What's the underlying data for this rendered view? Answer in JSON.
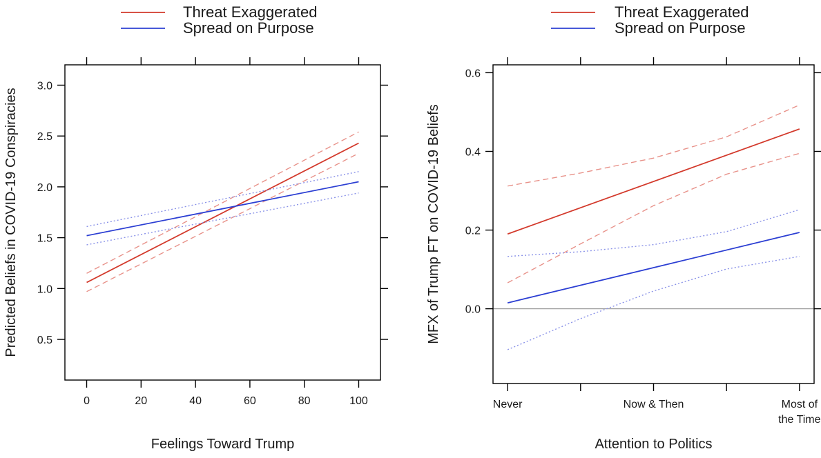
{
  "chart_data": [
    {
      "type": "line",
      "xlabel": "Feelings Toward Trump",
      "ylabel": "Predicted Beliefs in COVID-19 Conspiracies",
      "xlim": [
        -8,
        108
      ],
      "ylim": [
        0.1,
        3.2
      ],
      "xticks": [
        0,
        20,
        40,
        60,
        80,
        100
      ],
      "xtick_labels": [
        "0",
        "20",
        "40",
        "60",
        "80",
        "100"
      ],
      "yticks": [
        0.5,
        1.0,
        1.5,
        2.0,
        2.5,
        3.0
      ],
      "ytick_labels": [
        "0.5",
        "1.0",
        "1.5",
        "2.0",
        "2.5",
        "3.0"
      ],
      "legend": {
        "position": "top",
        "entries": [
          "Threat Exaggerated",
          "Spread on Purpose"
        ]
      },
      "series": [
        {
          "name": "Threat Exaggerated",
          "color": "#d33a2c",
          "style": "solid",
          "x": [
            0,
            100
          ],
          "y": [
            1.06,
            2.43
          ]
        },
        {
          "name": "Threat Exaggerated lower bound",
          "color": "#e8928a",
          "style": "dashed",
          "x": [
            0,
            100
          ],
          "y": [
            0.97,
            2.33
          ]
        },
        {
          "name": "Threat Exaggerated upper bound",
          "color": "#e8928a",
          "style": "dashed",
          "x": [
            0,
            100
          ],
          "y": [
            1.15,
            2.54
          ]
        },
        {
          "name": "Spread on Purpose",
          "color": "#2c3fd3",
          "style": "solid",
          "x": [
            0,
            100
          ],
          "y": [
            1.52,
            2.05
          ]
        },
        {
          "name": "Spread on Purpose lower bound",
          "color": "#8a92e8",
          "style": "dotted",
          "x": [
            0,
            100
          ],
          "y": [
            1.43,
            1.94
          ]
        },
        {
          "name": "Spread on Purpose upper bound",
          "color": "#8a92e8",
          "style": "dotted",
          "x": [
            0,
            100
          ],
          "y": [
            1.61,
            2.15
          ]
        }
      ]
    },
    {
      "type": "line",
      "xlabel": "Attention to Politics",
      "ylabel": "MFX of Trump FT on COVID-19 Beliefs",
      "xlim": [
        -0.2,
        4.2
      ],
      "ylim": [
        -0.19,
        0.62
      ],
      "xticks": [
        0,
        1,
        2,
        3,
        4
      ],
      "xtick_labels": [
        "Never",
        "",
        "Now & Then",
        "",
        "Most of\nthe Time"
      ],
      "yticks": [
        0.0,
        0.2,
        0.4,
        0.6
      ],
      "ytick_labels": [
        "0.0",
        "0.2",
        "0.4",
        "0.6"
      ],
      "reference_line": 0,
      "legend": {
        "position": "top",
        "entries": [
          "Threat Exaggerated",
          "Spread on Purpose"
        ]
      },
      "series": [
        {
          "name": "Threat Exaggerated",
          "color": "#d33a2c",
          "style": "solid",
          "x": [
            0,
            4
          ],
          "y": [
            0.19,
            0.457
          ]
        },
        {
          "name": "Threat Exaggerated lower bound",
          "color": "#e8928a",
          "style": "dashed",
          "x": [
            0,
            1,
            2,
            3,
            4
          ],
          "y": [
            0.066,
            0.165,
            0.262,
            0.342,
            0.395
          ]
        },
        {
          "name": "Threat Exaggerated upper bound",
          "color": "#e8928a",
          "style": "dashed",
          "x": [
            0,
            1,
            2,
            3,
            4
          ],
          "y": [
            0.312,
            0.345,
            0.383,
            0.437,
            0.518
          ]
        },
        {
          "name": "Spread on Purpose",
          "color": "#2c3fd3",
          "style": "solid",
          "x": [
            0,
            4
          ],
          "y": [
            0.015,
            0.194
          ]
        },
        {
          "name": "Spread on Purpose lower bound",
          "color": "#8a92e8",
          "style": "dotted",
          "x": [
            0,
            1,
            2,
            3,
            4
          ],
          "y": [
            -0.104,
            -0.025,
            0.045,
            0.101,
            0.133
          ]
        },
        {
          "name": "Spread on Purpose upper bound",
          "color": "#8a92e8",
          "style": "dotted",
          "x": [
            0,
            1,
            2,
            3,
            4
          ],
          "y": [
            0.133,
            0.145,
            0.163,
            0.196,
            0.252
          ]
        }
      ]
    }
  ]
}
